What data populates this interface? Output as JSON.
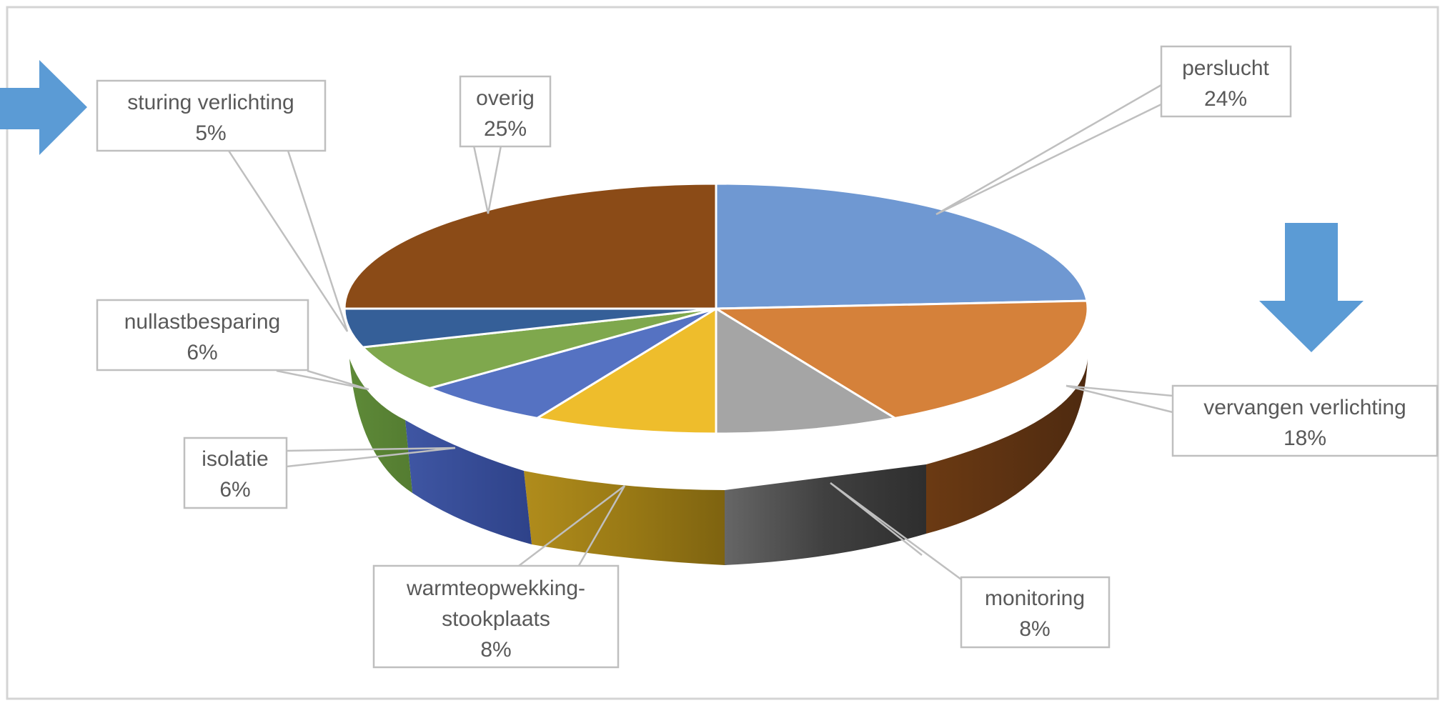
{
  "chart_data": {
    "type": "pie",
    "title": "",
    "slices": [
      {
        "label": "perslucht",
        "value": 24,
        "color": "#6f98d2"
      },
      {
        "label": "vervangen verlichting",
        "value": 18,
        "color": "#d5813a"
      },
      {
        "label": "monitoring",
        "value": 8,
        "color": "#a5a5a5"
      },
      {
        "label": "warmteopwekking-stookplaats",
        "value": 8,
        "color": "#eebd2c"
      },
      {
        "label": "isolatie",
        "value": 6,
        "color": "#5572c2"
      },
      {
        "label": "nullastbesparing",
        "value": 6,
        "color": "#7fa84d"
      },
      {
        "label": "sturing verlichting",
        "value": 5,
        "color": "#355f98"
      },
      {
        "label": "overig",
        "value": 25,
        "color": "#8b4b17"
      }
    ],
    "labels": [
      {
        "lines": [
          "perslucht",
          "24%"
        ]
      },
      {
        "lines": [
          "vervangen verlichting",
          "18%"
        ]
      },
      {
        "lines": [
          "monitoring",
          "8%"
        ]
      },
      {
        "lines": [
          "warmteopwekking-",
          "stookplaats",
          "8%"
        ]
      },
      {
        "lines": [
          "isolatie",
          "6%"
        ]
      },
      {
        "lines": [
          "nullastbesparing",
          "6%"
        ]
      },
      {
        "lines": [
          "sturing verlichting",
          "5%"
        ]
      },
      {
        "lines": [
          "overig",
          "25%"
        ]
      }
    ],
    "style": "3d",
    "legend": "none"
  },
  "annotations": {
    "arrow_color": "#5b9bd5",
    "arrows": [
      {
        "name": "right-arrow-icon",
        "direction": "right",
        "points_to": "sturing verlichting"
      },
      {
        "name": "down-arrow-icon",
        "direction": "down",
        "points_to": "vervangen verlichting"
      }
    ]
  }
}
